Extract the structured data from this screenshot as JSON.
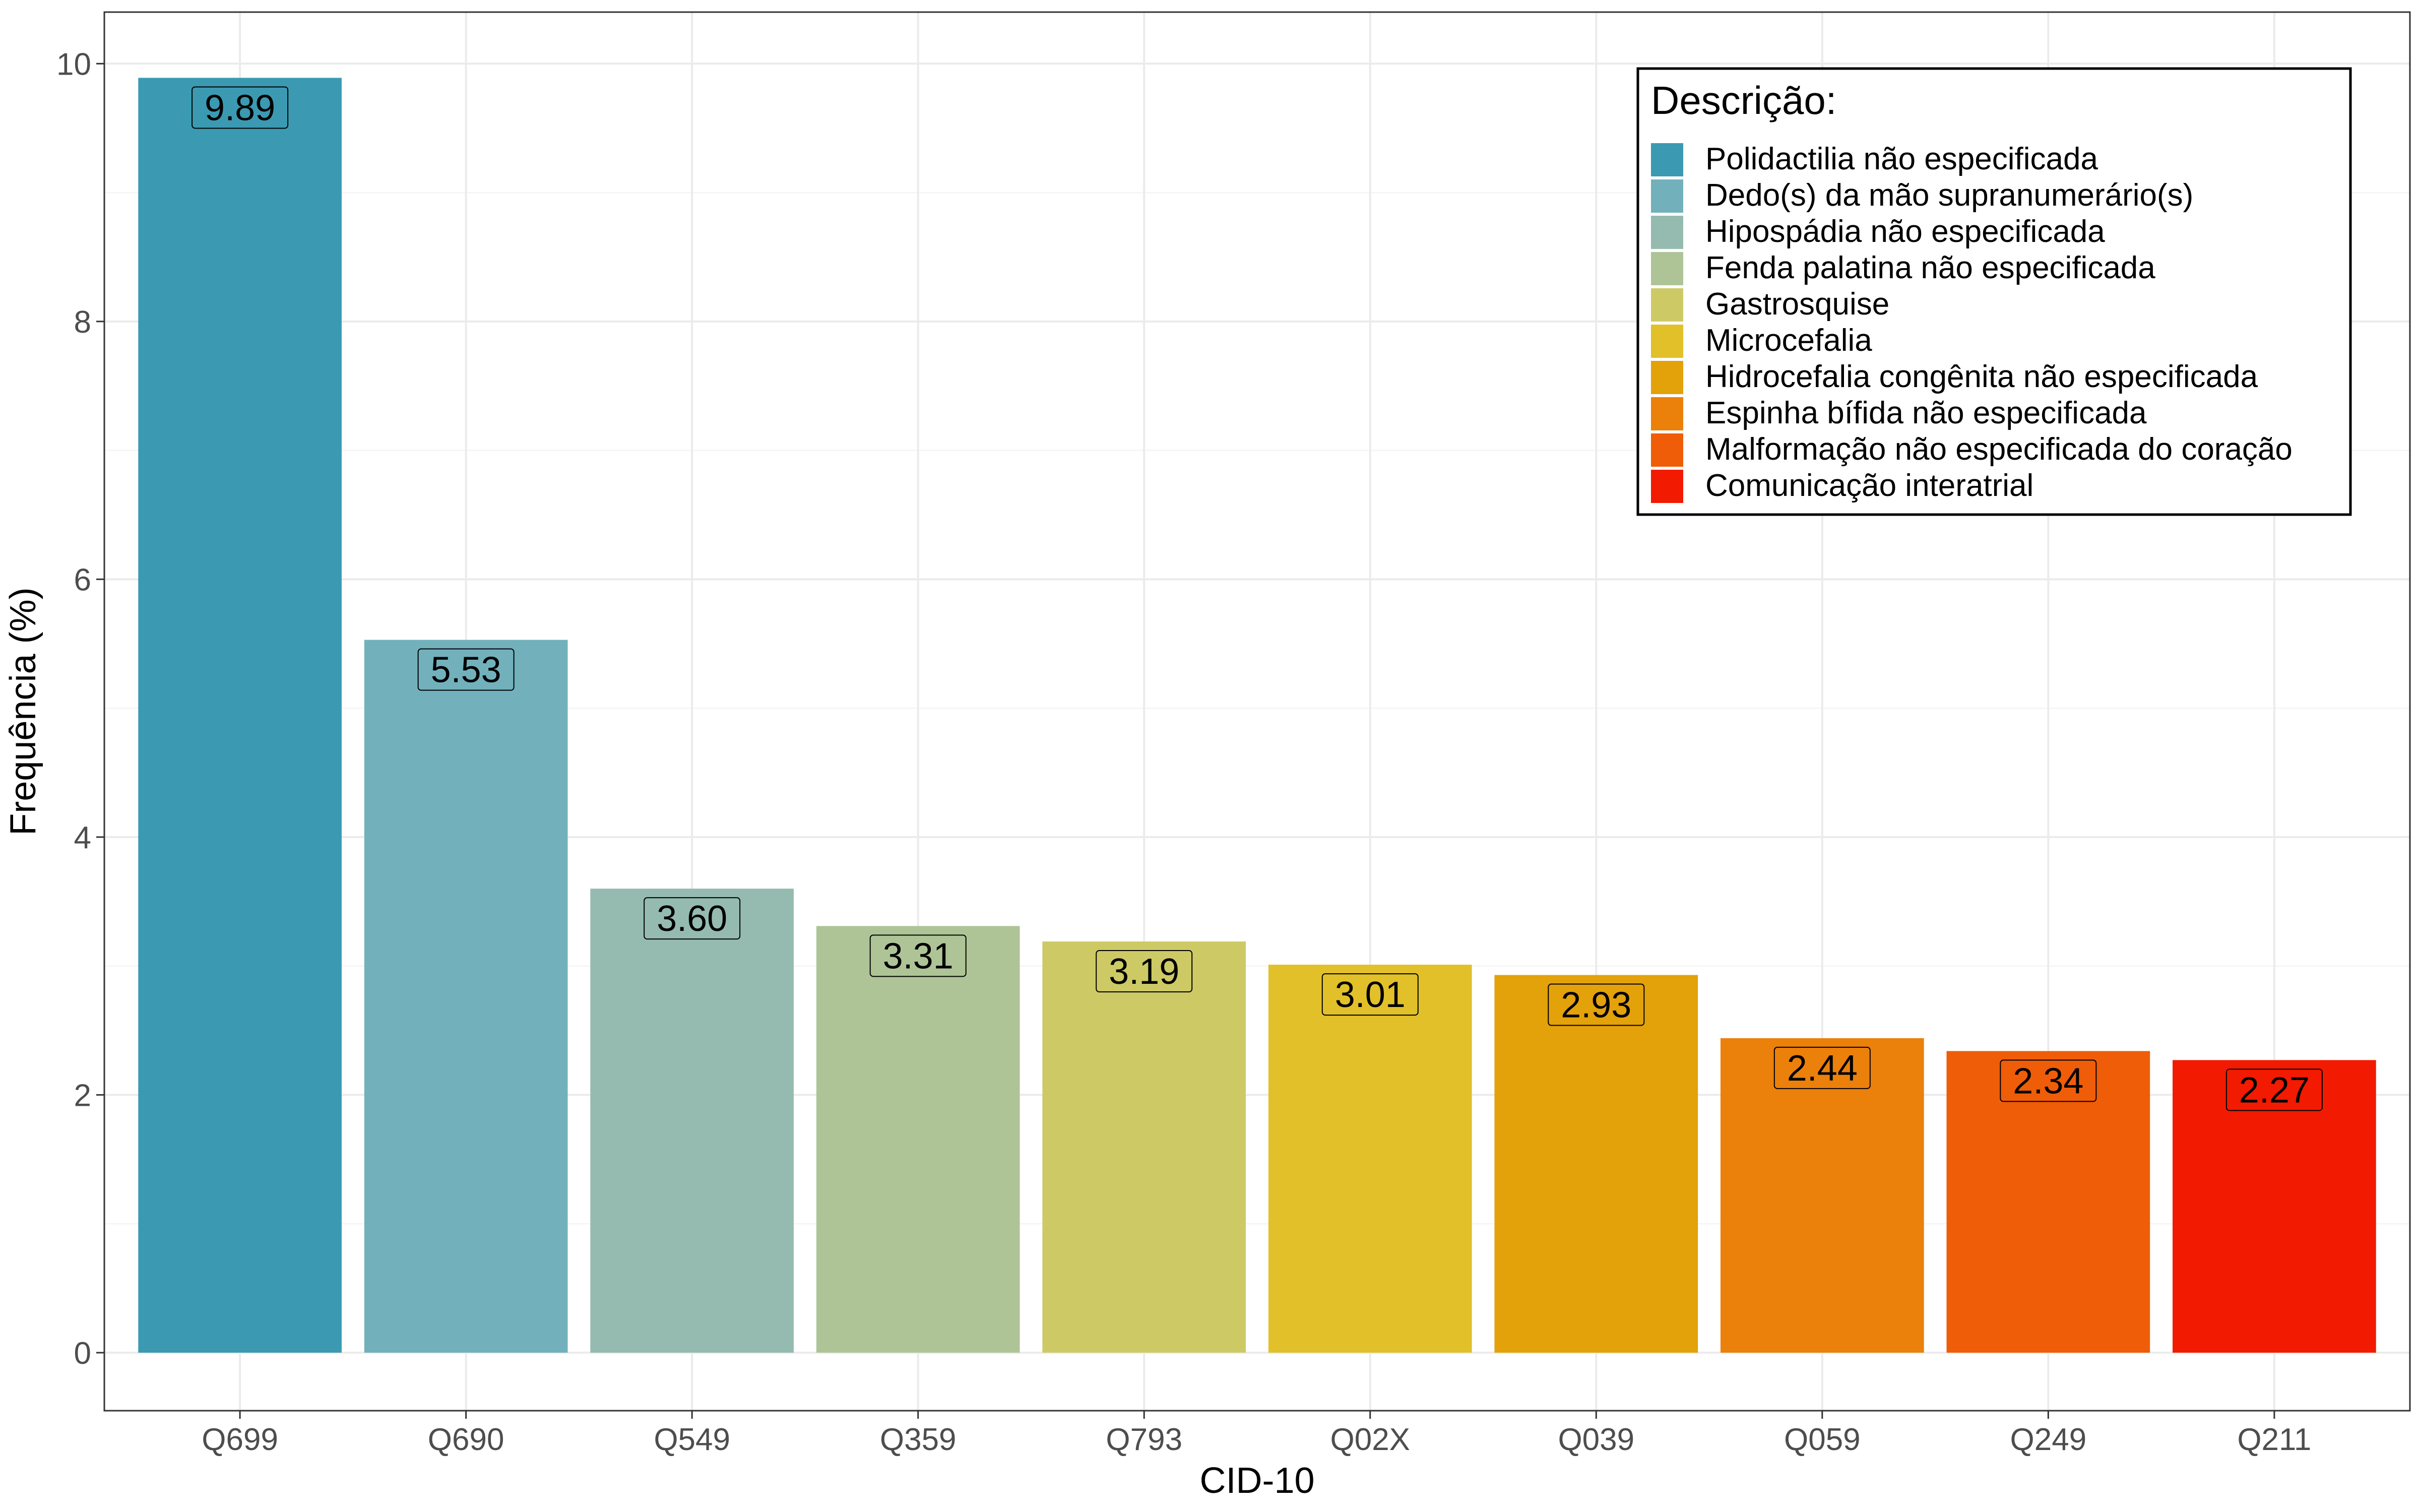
{
  "chart_data": {
    "type": "bar",
    "xlabel": "CID-10",
    "ylabel": "Frequência (%)",
    "ylim": [
      -0.45,
      10.4
    ],
    "y_ticks": [
      0,
      2,
      4,
      6,
      8,
      10
    ],
    "grid": true,
    "legend_position": "top-right",
    "categories": [
      "Q699",
      "Q690",
      "Q549",
      "Q359",
      "Q793",
      "Q02X",
      "Q039",
      "Q059",
      "Q249",
      "Q211"
    ],
    "values": [
      9.89,
      5.53,
      3.6,
      3.31,
      3.19,
      3.01,
      2.93,
      2.44,
      2.34,
      2.27
    ],
    "value_labels": [
      "9.89",
      "5.53",
      "3.60",
      "3.31",
      "3.19",
      "3.01",
      "2.93",
      "2.44",
      "2.34",
      "2.27"
    ],
    "colors": [
      "#3b9ab2",
      "#72b1bc",
      "#95bbb0",
      "#aec497",
      "#cdca66",
      "#e1c02a",
      "#e3a10a",
      "#eb800b",
      "#ef5d08",
      "#f21a00"
    ],
    "legend": {
      "title": "Descrição:",
      "entries": [
        "Polidactilia não especificada",
        "Dedo(s) da mão supranumerário(s)",
        "Hipospádia não especificada",
        "Fenda palatina não especificada",
        "Gastrosquise",
        "Microcefalia",
        "Hidrocefalia congênita não especificada",
        "Espinha bífida não especificada",
        "Malformação não especificada do coração",
        "Comunicação interatrial"
      ]
    }
  }
}
